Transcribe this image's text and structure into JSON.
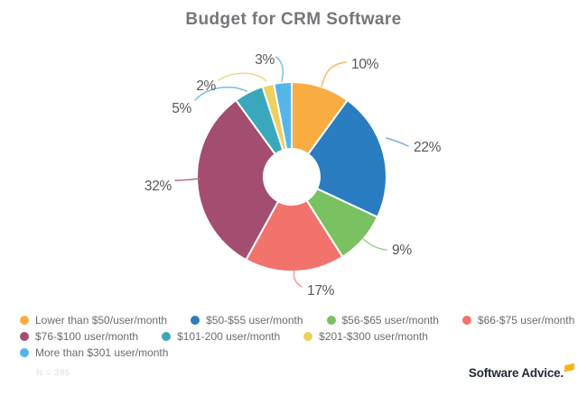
{
  "title": "Budget for CRM Software",
  "chart_data": {
    "type": "pie",
    "subtype": "donut",
    "title": "Budget for CRM Software",
    "unit": "%",
    "total": 100,
    "start_angle_deg": 0,
    "direction": "clockwise",
    "legend_position": "bottom",
    "legend_row_breaks": [
      4,
      3,
      1
    ],
    "sample_note": "N = 385",
    "slices": [
      {
        "name": "Lower than $50/user/month",
        "value": 10,
        "label": "10%",
        "color": "#F9AC42"
      },
      {
        "name": "$50-$55 user/month",
        "value": 22,
        "label": "22%",
        "color": "#2A7DC0"
      },
      {
        "name": "$56-$65 user/month",
        "value": 9,
        "label": "9%",
        "color": "#7AC162"
      },
      {
        "name": "$66-$75 user/month",
        "value": 17,
        "label": "17%",
        "color": "#F2726C"
      },
      {
        "name": "$76-$100 user/month",
        "value": 32,
        "label": "32%",
        "color": "#A34E70"
      },
      {
        "name": "$101-200 user/month",
        "value": 5,
        "label": "5%",
        "color": "#3AA8BC"
      },
      {
        "name": "$201-$300 user/month",
        "value": 2,
        "label": "2%",
        "color": "#EDD05E"
      },
      {
        "name": "More than $301 user/month",
        "value": 3,
        "label": "3%",
        "color": "#55B5E8"
      }
    ]
  },
  "branding": {
    "logo_text": "Software Advice.",
    "flag_color": "#FBB216"
  }
}
